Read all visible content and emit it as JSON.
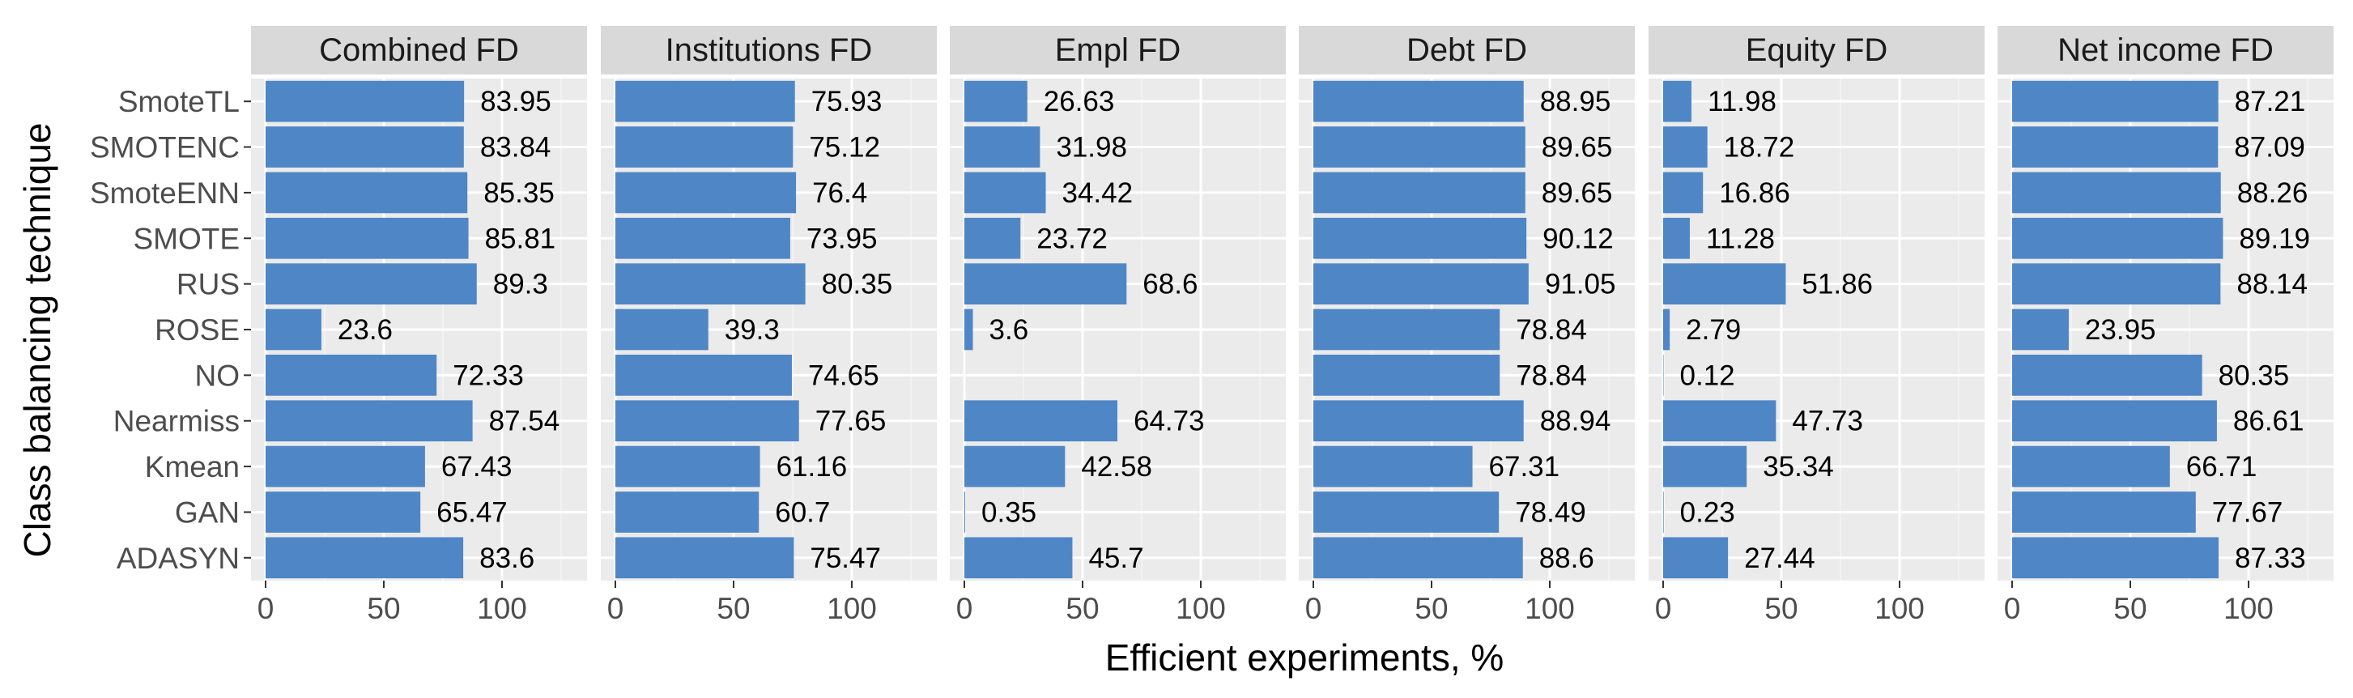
{
  "chart_data": {
    "type": "bar",
    "orientation": "horizontal",
    "xlabel": "Efficient experiments, %",
    "ylabel": "Class balancing technique",
    "xlim": [
      0,
      135
    ],
    "xticks": [
      "0",
      "50",
      "100"
    ],
    "grid": true,
    "bar_color": "#4f86c6",
    "panel_bg": "#ebebeb",
    "strip_bg": "#d9d9d9",
    "categories": [
      "SmoteTL",
      "SMOTENC",
      "SmoteENN",
      "SMOTE",
      "RUS",
      "ROSE",
      "NO",
      "Nearmiss",
      "Kmean",
      "GAN",
      "ADASYN"
    ],
    "facets": [
      {
        "name": "Combined FD",
        "values": [
          83.95,
          83.84,
          85.35,
          85.81,
          89.3,
          23.6,
          72.33,
          87.54,
          67.43,
          65.47,
          83.6
        ],
        "labels": [
          "83.95",
          "83.84",
          "85.35",
          "85.81",
          "89.3",
          "23.6",
          "72.33",
          "87.54",
          "67.43",
          "65.47",
          "83.6"
        ]
      },
      {
        "name": "Institutions FD",
        "values": [
          75.93,
          75.12,
          76.4,
          73.95,
          80.35,
          39.3,
          74.65,
          77.65,
          61.16,
          60.7,
          75.47
        ],
        "labels": [
          "75.93",
          "75.12",
          "76.4",
          "73.95",
          "80.35",
          "39.3",
          "74.65",
          "77.65",
          "61.16",
          "60.7",
          "75.47"
        ]
      },
      {
        "name": "Empl FD",
        "values": [
          26.63,
          31.98,
          34.42,
          23.72,
          68.6,
          3.6,
          null,
          64.73,
          42.58,
          0.35,
          45.7
        ],
        "labels": [
          "26.63",
          "31.98",
          "34.42",
          "23.72",
          "68.6",
          "3.6",
          null,
          "64.73",
          "42.58",
          "0.35",
          "45.7"
        ]
      },
      {
        "name": "Debt FD",
        "values": [
          88.95,
          89.65,
          89.65,
          90.12,
          91.05,
          78.84,
          78.84,
          88.94,
          67.31,
          78.49,
          88.6
        ],
        "labels": [
          "88.95",
          "89.65",
          "89.65",
          "90.12",
          "91.05",
          "78.84",
          "78.84",
          "88.94",
          "67.31",
          "78.49",
          "88.6"
        ]
      },
      {
        "name": "Equity FD",
        "values": [
          11.98,
          18.72,
          16.86,
          11.28,
          51.86,
          2.79,
          0.12,
          47.73,
          35.34,
          0.23,
          27.44
        ],
        "labels": [
          "11.98",
          "18.72",
          "16.86",
          "11.28",
          "51.86",
          "2.79",
          "0.12",
          "47.73",
          "35.34",
          "0.23",
          "27.44"
        ]
      },
      {
        "name": "Net income FD",
        "values": [
          87.21,
          87.09,
          88.26,
          89.19,
          88.14,
          23.95,
          80.35,
          86.61,
          66.71,
          77.67,
          87.33
        ],
        "labels": [
          "87.21",
          "87.09",
          "88.26",
          "89.19",
          "88.14",
          "23.95",
          "80.35",
          "86.61",
          "66.71",
          "77.67",
          "87.33"
        ]
      }
    ]
  }
}
